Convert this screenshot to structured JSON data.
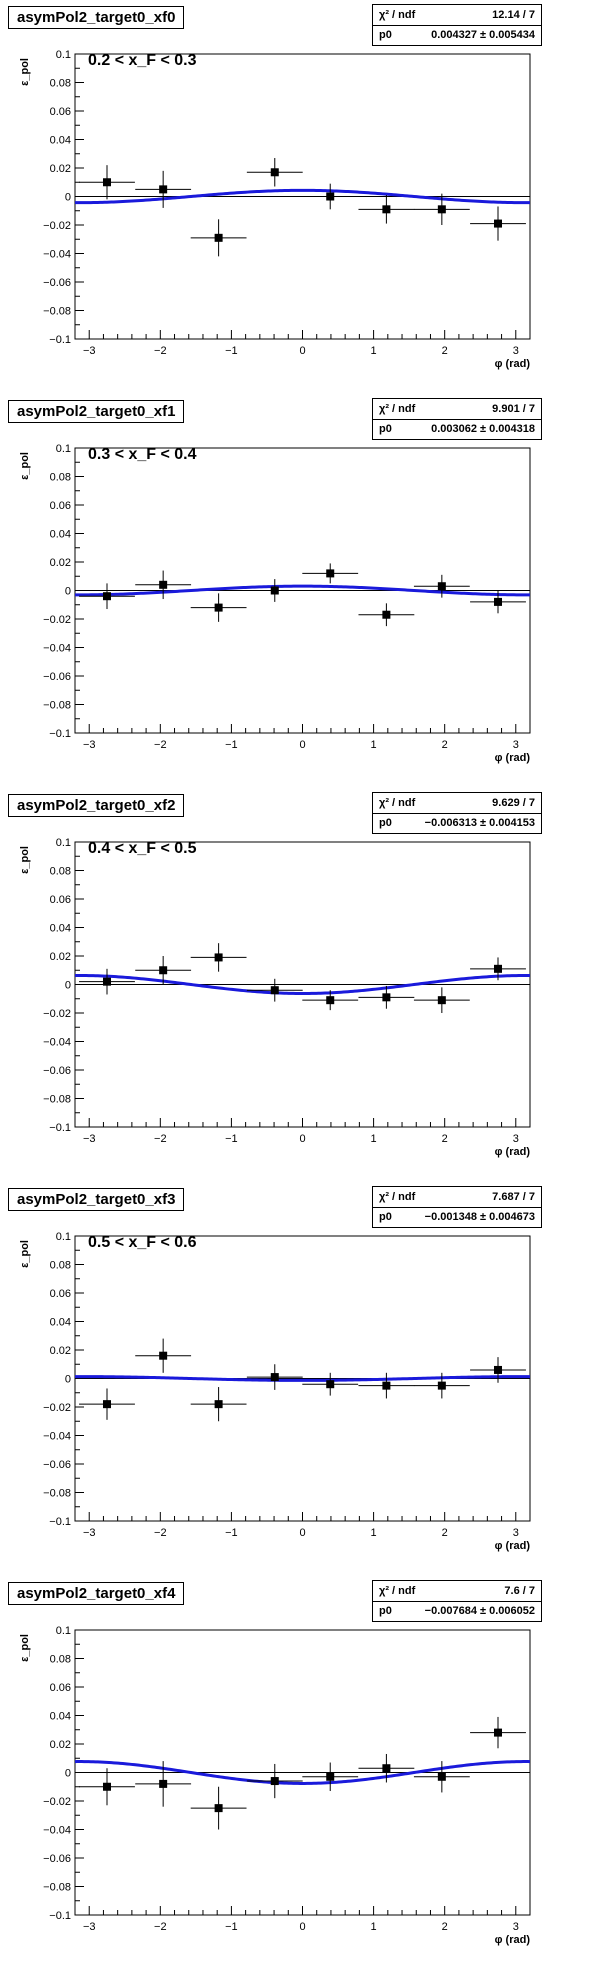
{
  "chart_data": [
    {
      "type": "scatter",
      "title": "asymPol2_target0_xf0",
      "annotation": "0.2 < x_F < 0.3",
      "xlabel": "φ (rad)",
      "ylabel": "ε_pol",
      "xlim": [
        -3.2,
        3.2
      ],
      "ylim": [
        -0.1,
        0.1
      ],
      "xticks": [
        -3,
        -2,
        -1,
        0,
        1,
        2,
        3
      ],
      "yticks": [
        -0.1,
        -0.08,
        -0.06,
        -0.04,
        -0.02,
        0,
        0.02,
        0.04,
        0.06,
        0.08,
        0.1
      ],
      "stats": {
        "chi2_label": "χ² / ndf",
        "chi2_value": "12.14 / 7",
        "p0_label": "p0",
        "p0_value": "0.004327 ± 0.005434"
      },
      "fit": {
        "p0": 0.004327
      },
      "points": {
        "x": [
          -2.75,
          -1.96,
          -1.18,
          -0.39,
          0.39,
          1.18,
          1.96,
          2.75
        ],
        "y": [
          0.01,
          0.005,
          -0.029,
          0.017,
          0.0,
          -0.009,
          -0.009,
          -0.019
        ],
        "yerr": [
          0.012,
          0.013,
          0.013,
          0.01,
          0.009,
          0.01,
          0.011,
          0.012
        ]
      }
    },
    {
      "type": "scatter",
      "title": "asymPol2_target0_xf1",
      "annotation": "0.3 < x_F < 0.4",
      "xlabel": "φ (rad)",
      "ylabel": "ε_pol",
      "xlim": [
        -3.2,
        3.2
      ],
      "ylim": [
        -0.1,
        0.1
      ],
      "xticks": [
        -3,
        -2,
        -1,
        0,
        1,
        2,
        3
      ],
      "yticks": [
        -0.1,
        -0.08,
        -0.06,
        -0.04,
        -0.02,
        0,
        0.02,
        0.04,
        0.06,
        0.08,
        0.1
      ],
      "stats": {
        "chi2_label": "χ² / ndf",
        "chi2_value": "9.901 / 7",
        "p0_label": "p0",
        "p0_value": "0.003062 ± 0.004318"
      },
      "fit": {
        "p0": 0.003062
      },
      "points": {
        "x": [
          -2.75,
          -1.96,
          -1.18,
          -0.39,
          0.39,
          1.18,
          1.96,
          2.75
        ],
        "y": [
          -0.004,
          0.004,
          -0.012,
          0.0,
          0.012,
          -0.017,
          0.003,
          -0.008
        ],
        "yerr": [
          0.009,
          0.01,
          0.01,
          0.008,
          0.007,
          0.008,
          0.008,
          0.008
        ]
      }
    },
    {
      "type": "scatter",
      "title": "asymPol2_target0_xf2",
      "annotation": "0.4 < x_F < 0.5",
      "xlabel": "φ (rad)",
      "ylabel": "ε_pol",
      "xlim": [
        -3.2,
        3.2
      ],
      "ylim": [
        -0.1,
        0.1
      ],
      "xticks": [
        -3,
        -2,
        -1,
        0,
        1,
        2,
        3
      ],
      "yticks": [
        -0.1,
        -0.08,
        -0.06,
        -0.04,
        -0.02,
        0,
        0.02,
        0.04,
        0.06,
        0.08,
        0.1
      ],
      "stats": {
        "chi2_label": "χ² / ndf",
        "chi2_value": "9.629 / 7",
        "p0_label": "p0",
        "p0_value": "−0.006313 ± 0.004153"
      },
      "fit": {
        "p0": -0.006313
      },
      "points": {
        "x": [
          -2.75,
          -1.96,
          -1.18,
          -0.39,
          0.39,
          1.18,
          1.96,
          2.75
        ],
        "y": [
          0.002,
          0.01,
          0.019,
          -0.004,
          -0.011,
          -0.009,
          -0.011,
          0.011
        ],
        "yerr": [
          0.009,
          0.01,
          0.01,
          0.008,
          0.007,
          0.008,
          0.009,
          0.008
        ]
      }
    },
    {
      "type": "scatter",
      "title": "asymPol2_target0_xf3",
      "annotation": "0.5 < x_F < 0.6",
      "xlabel": "φ (rad)",
      "ylabel": "ε_pol",
      "xlim": [
        -3.2,
        3.2
      ],
      "ylim": [
        -0.1,
        0.1
      ],
      "xticks": [
        -3,
        -2,
        -1,
        0,
        1,
        2,
        3
      ],
      "yticks": [
        -0.1,
        -0.08,
        -0.06,
        -0.04,
        -0.02,
        0,
        0.02,
        0.04,
        0.06,
        0.08,
        0.1
      ],
      "stats": {
        "chi2_label": "χ² / ndf",
        "chi2_value": "7.687 / 7",
        "p0_label": "p0",
        "p0_value": "−0.001348 ± 0.004673"
      },
      "fit": {
        "p0": -0.001348
      },
      "points": {
        "x": [
          -2.75,
          -1.96,
          -1.18,
          -0.39,
          0.39,
          1.18,
          1.96,
          2.75
        ],
        "y": [
          -0.018,
          0.016,
          -0.018,
          0.001,
          -0.004,
          -0.005,
          -0.005,
          0.006
        ],
        "yerr": [
          0.011,
          0.012,
          0.012,
          0.009,
          0.008,
          0.009,
          0.009,
          0.009
        ]
      }
    },
    {
      "type": "scatter",
      "title": "asymPol2_target0_xf4",
      "annotation": "0.6 < x_F < 0.7",
      "xlabel": "φ (rad)",
      "ylabel": "ε_pol",
      "xlim": [
        -3.2,
        3.2
      ],
      "ylim": [
        -0.1,
        0.1
      ],
      "xticks": [
        -3,
        -2,
        -1,
        0,
        1,
        2,
        3
      ],
      "yticks": [
        -0.1,
        -0.08,
        -0.06,
        -0.04,
        -0.02,
        0,
        0.02,
        0.04,
        0.06,
        0.08,
        0.1
      ],
      "stats": {
        "chi2_label": "χ² / ndf",
        "chi2_value": "7.6 / 7",
        "p0_label": "p0",
        "p0_value": "−0.007684 ± 0.006052"
      },
      "fit": {
        "p0": -0.007684
      },
      "points": {
        "x": [
          -2.75,
          -1.96,
          -1.18,
          -0.39,
          0.39,
          1.18,
          1.96,
          2.75
        ],
        "y": [
          -0.01,
          -0.008,
          -0.025,
          -0.006,
          -0.003,
          0.003,
          -0.003,
          0.028
        ],
        "yerr": [
          0.013,
          0.016,
          0.015,
          0.012,
          0.01,
          0.01,
          0.011,
          0.011
        ]
      }
    }
  ],
  "colors": {
    "fit_line": "#1a1adb",
    "markers": "#000000",
    "frame": "#000000"
  }
}
